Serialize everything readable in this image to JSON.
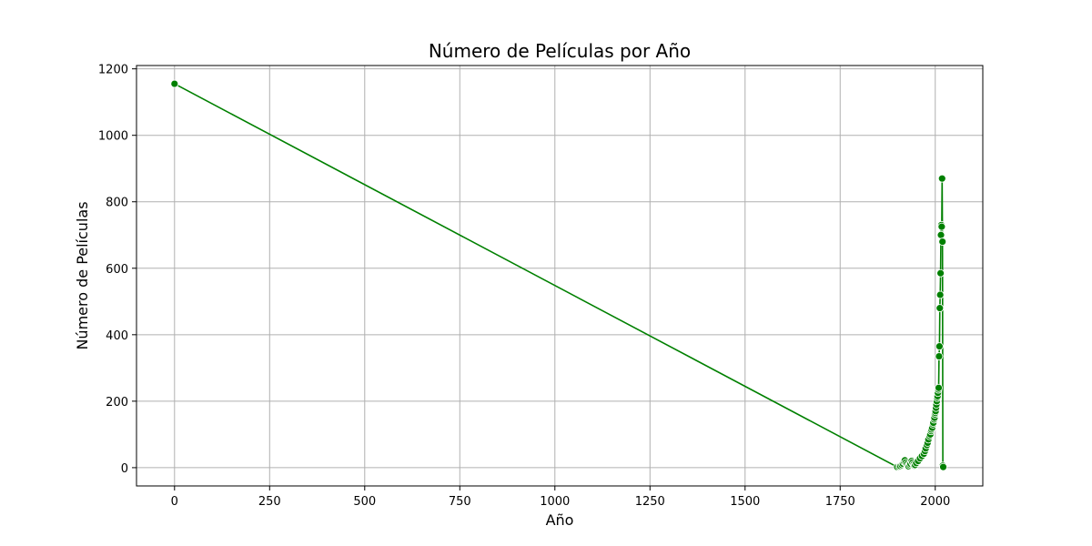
{
  "chart_data": {
    "type": "line",
    "title": "Número de Películas por Año",
    "xlabel": "Año",
    "ylabel": "Número de Películas",
    "xlim": [
      -100,
      2125
    ],
    "ylim": [
      -55,
      1210
    ],
    "xticks": [
      0,
      250,
      500,
      750,
      1000,
      1250,
      1500,
      1750,
      2000
    ],
    "yticks": [
      0,
      200,
      400,
      600,
      800,
      1000,
      1200
    ],
    "grid": true,
    "series": [
      {
        "color": "#008000",
        "marker": "circle",
        "x": [
          0,
          1900,
          1905,
          1908,
          1912,
          1915,
          1918,
          1920,
          1922,
          1925,
          1928,
          1930,
          1933,
          1935,
          1938,
          1940,
          1943,
          1945,
          1947,
          1950,
          1955,
          1960,
          1965,
          1970,
          1973,
          1975,
          1978,
          1980,
          1982,
          1985,
          1987,
          1989,
          1990,
          1992,
          1994,
          1995,
          1997,
          1998,
          1999,
          2000,
          2001,
          2002,
          2003,
          2004,
          2005,
          2006,
          2007,
          2008,
          2009,
          2010,
          2011,
          2012,
          2013,
          2014,
          2015,
          2016,
          2017,
          2018,
          2019,
          2020,
          2021
        ],
        "y": [
          1155,
          2,
          3,
          5,
          8,
          12,
          18,
          22,
          15,
          10,
          6,
          4,
          8,
          12,
          20,
          15,
          10,
          6,
          8,
          14,
          20,
          28,
          35,
          42,
          50,
          58,
          68,
          75,
          85,
          95,
          100,
          110,
          115,
          120,
          130,
          135,
          145,
          150,
          160,
          165,
          170,
          180,
          190,
          200,
          210,
          215,
          225,
          235,
          240,
          335,
          365,
          480,
          520,
          585,
          700,
          730,
          725,
          870,
          680,
          6,
          2
        ]
      }
    ]
  }
}
